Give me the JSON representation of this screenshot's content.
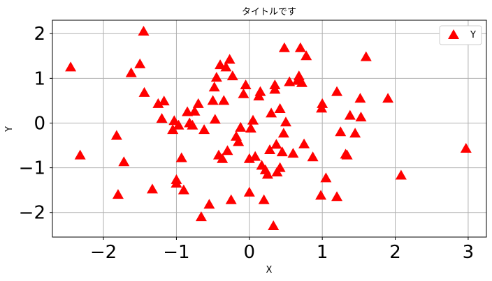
{
  "chart_data": {
    "type": "scatter",
    "title": "タイトルです",
    "xlabel": "X",
    "ylabel": "Y",
    "xlim": [
      -2.7,
      3.25
    ],
    "ylim": [
      -2.55,
      2.3
    ],
    "xticks": [
      -2,
      -1,
      0,
      1,
      2,
      3
    ],
    "yticks": [
      -2,
      -1,
      0,
      1,
      2
    ],
    "xtick_labels": [
      "−2",
      "−1",
      "0",
      "1",
      "2",
      "3"
    ],
    "ytick_labels": [
      "−2",
      "−1",
      "0",
      "1",
      "2"
    ],
    "grid": true,
    "legend_position": "top-right",
    "marker": "triangle-up",
    "color": "#ff0000",
    "series": [
      {
        "name": "Y",
        "points": [
          [
            -2.45,
            1.25
          ],
          [
            -2.32,
            -0.72
          ],
          [
            -1.82,
            -0.28
          ],
          [
            -1.8,
            -1.6
          ],
          [
            -1.72,
            -0.87
          ],
          [
            -1.62,
            1.12
          ],
          [
            -1.5,
            1.32
          ],
          [
            -1.45,
            2.05
          ],
          [
            -1.44,
            0.68
          ],
          [
            -1.33,
            -1.48
          ],
          [
            -1.25,
            0.43
          ],
          [
            -1.2,
            0.1
          ],
          [
            -1.17,
            0.49
          ],
          [
            -1.05,
            -0.15
          ],
          [
            -1.03,
            0.05
          ],
          [
            -1.0,
            -1.35
          ],
          [
            -1.0,
            -1.27
          ],
          [
            -0.97,
            -0.05
          ],
          [
            -0.93,
            -0.78
          ],
          [
            -0.9,
            -1.5
          ],
          [
            -0.85,
            0.25
          ],
          [
            -0.82,
            0.0
          ],
          [
            -0.78,
            -0.05
          ],
          [
            -0.75,
            0.26
          ],
          [
            -0.7,
            0.43
          ],
          [
            -0.66,
            -2.1
          ],
          [
            -0.62,
            -0.15
          ],
          [
            -0.55,
            -1.82
          ],
          [
            -0.5,
            0.5
          ],
          [
            -0.48,
            0.8
          ],
          [
            -0.47,
            0.08
          ],
          [
            -0.45,
            1.02
          ],
          [
            -0.42,
            -0.72
          ],
          [
            -0.4,
            1.3
          ],
          [
            -0.37,
            -0.8
          ],
          [
            -0.35,
            0.5
          ],
          [
            -0.32,
            1.25
          ],
          [
            -0.3,
            -0.62
          ],
          [
            -0.27,
            1.42
          ],
          [
            -0.25,
            -1.72
          ],
          [
            -0.23,
            1.05
          ],
          [
            -0.18,
            -0.3
          ],
          [
            -0.15,
            -0.42
          ],
          [
            -0.12,
            -0.1
          ],
          [
            -0.08,
            0.65
          ],
          [
            -0.05,
            0.85
          ],
          [
            0.0,
            -1.55
          ],
          [
            0.0,
            -0.8
          ],
          [
            0.02,
            -0.12
          ],
          [
            0.05,
            0.06
          ],
          [
            0.08,
            -0.75
          ],
          [
            0.13,
            0.6
          ],
          [
            0.15,
            0.7
          ],
          [
            0.17,
            -0.95
          ],
          [
            0.2,
            -1.72
          ],
          [
            0.22,
            -1.05
          ],
          [
            0.25,
            -1.15
          ],
          [
            0.28,
            -0.6
          ],
          [
            0.3,
            0.22
          ],
          [
            0.33,
            -2.3
          ],
          [
            0.35,
            0.85
          ],
          [
            0.35,
            0.75
          ],
          [
            0.37,
            -0.48
          ],
          [
            0.38,
            -1.1
          ],
          [
            0.42,
            -1.0
          ],
          [
            0.42,
            0.32
          ],
          [
            0.45,
            -0.65
          ],
          [
            0.47,
            -0.23
          ],
          [
            0.48,
            1.68
          ],
          [
            0.5,
            0.02
          ],
          [
            0.55,
            0.92
          ],
          [
            0.6,
            -0.68
          ],
          [
            0.66,
            0.95
          ],
          [
            0.68,
            1.05
          ],
          [
            0.7,
            1.68
          ],
          [
            0.72,
            0.9
          ],
          [
            0.75,
            -0.47
          ],
          [
            0.78,
            1.5
          ],
          [
            0.87,
            -0.76
          ],
          [
            0.98,
            -1.62
          ],
          [
            0.99,
            0.33
          ],
          [
            1.0,
            0.43
          ],
          [
            1.05,
            -1.23
          ],
          [
            1.2,
            -1.65
          ],
          [
            1.2,
            0.7
          ],
          [
            1.25,
            -0.2
          ],
          [
            1.32,
            -0.7
          ],
          [
            1.34,
            -0.72
          ],
          [
            1.38,
            0.17
          ],
          [
            1.45,
            -0.23
          ],
          [
            1.52,
            0.55
          ],
          [
            1.53,
            0.13
          ],
          [
            1.6,
            1.48
          ],
          [
            1.9,
            0.55
          ],
          [
            2.08,
            -1.17
          ],
          [
            2.97,
            -0.57
          ]
        ]
      }
    ]
  }
}
